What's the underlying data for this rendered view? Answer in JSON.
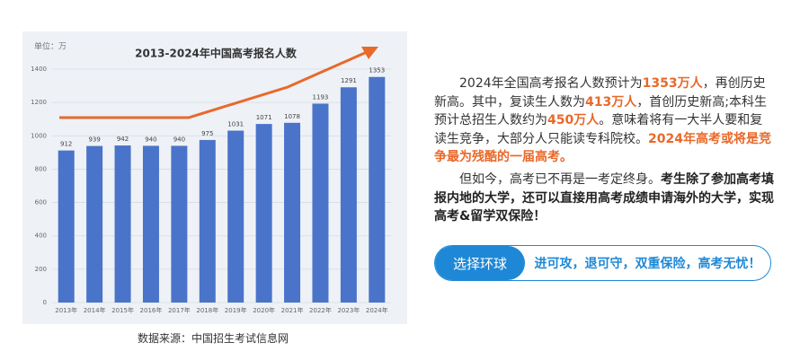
{
  "chart_data": {
    "type": "bar",
    "title": "2013-2024年中国高考报名人数",
    "unit_label": "单位：万",
    "categories": [
      "2013年",
      "2014年",
      "2015年",
      "2016年",
      "2017年",
      "2018年",
      "2019年",
      "2020年",
      "2021年",
      "2022年",
      "2023年",
      "2024年"
    ],
    "values": [
      912,
      939,
      942,
      940,
      940,
      975,
      1031,
      1071,
      1078,
      1193,
      1291,
      1353
    ],
    "color": "#4a74c9",
    "ylim": [
      0,
      1400
    ],
    "yticks": [
      0,
      200,
      400,
      600,
      800,
      1000,
      1200,
      1400
    ],
    "grid": true
  },
  "source": "数据来源：中国招生考试信息网",
  "paragraphs": [
    [
      "2024年全国高考报名人数预计为",
      "1353万人",
      "，再创历史新高。其中，复读生人数为",
      "413万人",
      "，首创历史新高;本科生预计总招生人数约为",
      "450万人",
      "。意味着将有一大半人要和复读生竞争，大部分人只能读专科院校。",
      "2024年高考或将是竞争最为残酷的一届高考。"
    ],
    [
      "但如今，高考已不再是一考定终身。",
      "考生除了参加高考填报内地的大学，还可以直接用高考成绩申请海外的大学，实现高考&留学双保险！"
    ]
  ],
  "button": {
    "label": "选择环球",
    "slogan": "进可攻，退可守，双重保险，高考无忧！"
  }
}
